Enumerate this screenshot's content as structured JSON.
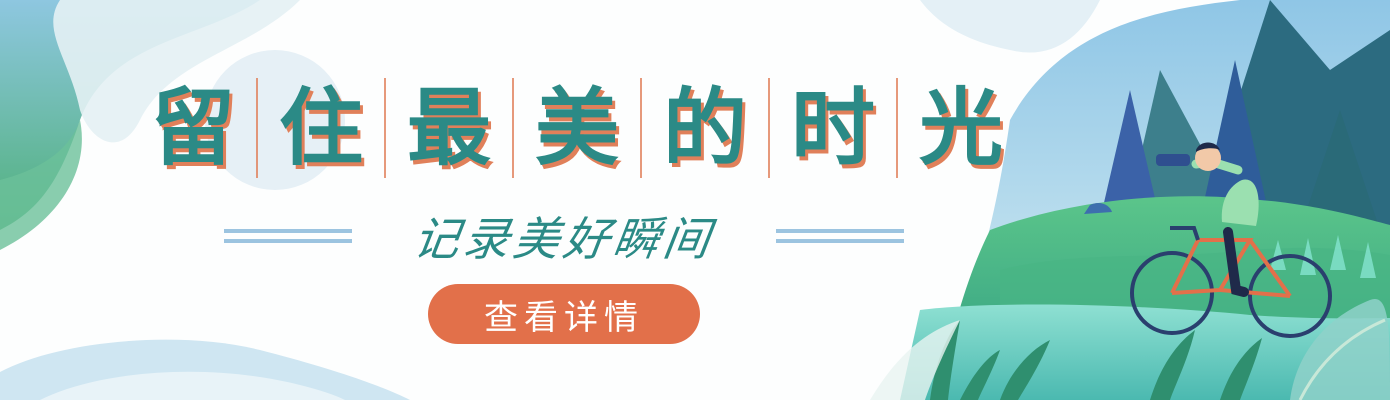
{
  "banner": {
    "title_chars": [
      "留",
      "住",
      "最",
      "美",
      "的",
      "时",
      "光"
    ],
    "subtitle": "记录美好瞬间",
    "cta_label": "查看详情"
  },
  "colors": {
    "title": "#2b8a86",
    "title_shadow": "#e0805a",
    "cta_background": "#e2704a",
    "deco_lines": "#9cc4e0",
    "left_wave_green": "#4fb07a",
    "left_wave_blue": "#8ec7e0",
    "scene_grass": "#3aa585",
    "scene_mountain": "#2c6b80",
    "bike_frame": "#e2704a"
  },
  "illustration": {
    "subject": "cyclist-with-binoculars",
    "icons": [
      "bicycle-icon",
      "binoculars-icon",
      "mountain-icon",
      "pine-tree-icon",
      "leaf-icon"
    ]
  }
}
